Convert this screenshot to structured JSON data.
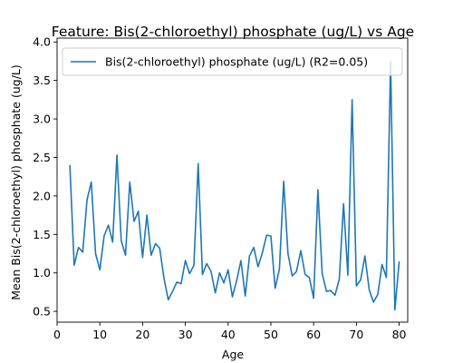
{
  "chart_data": {
    "type": "line",
    "title": "Feature: Bis(2-chloroethyl) phosphate (ug/L) vs Age",
    "xlabel": "Age",
    "ylabel": "Mean Bis(2-chloroethyl) phosphate (ug/L)",
    "xlim": [
      0,
      82
    ],
    "ylim": [
      0.36,
      4.05
    ],
    "xticks": [
      0,
      10,
      20,
      30,
      40,
      50,
      60,
      70,
      80
    ],
    "yticks": [
      0.5,
      1.0,
      1.5,
      2.0,
      2.5,
      3.0,
      3.5,
      4.0
    ],
    "ytick_labels": [
      "0.5",
      "1.0",
      "1.5",
      "2.0",
      "2.5",
      "3.0",
      "3.5",
      "4.0"
    ],
    "grid": false,
    "legend_position": "top-right",
    "series": [
      {
        "name": "Bis(2-chloroethyl) phosphate (ug/L) (R2=0.05)",
        "color": "#1f77b4",
        "x": [
          3,
          4,
          5,
          6,
          7,
          8,
          9,
          10,
          11,
          12,
          13,
          14,
          15,
          16,
          17,
          18,
          19,
          20,
          21,
          22,
          23,
          24,
          25,
          26,
          27,
          28,
          29,
          30,
          31,
          32,
          33,
          34,
          35,
          36,
          37,
          38,
          39,
          40,
          41,
          42,
          43,
          44,
          45,
          46,
          47,
          48,
          49,
          50,
          51,
          52,
          53,
          54,
          55,
          56,
          57,
          58,
          59,
          60,
          61,
          62,
          63,
          64,
          65,
          66,
          67,
          68,
          69,
          70,
          71,
          72,
          73,
          74,
          75,
          76,
          77,
          78,
          79,
          80
        ],
        "y": [
          2.39,
          1.1,
          1.33,
          1.27,
          1.95,
          2.18,
          1.25,
          1.04,
          1.48,
          1.62,
          1.4,
          2.53,
          1.42,
          1.23,
          2.18,
          1.67,
          1.8,
          1.2,
          1.75,
          1.23,
          1.38,
          1.32,
          0.93,
          0.65,
          0.76,
          0.88,
          0.86,
          1.16,
          0.99,
          1.1,
          2.42,
          0.98,
          1.12,
          1.02,
          0.74,
          1.0,
          0.87,
          1.04,
          0.69,
          0.9,
          1.16,
          0.7,
          1.22,
          1.33,
          1.08,
          1.26,
          1.49,
          1.48,
          0.8,
          1.05,
          2.19,
          1.25,
          0.96,
          1.02,
          1.29,
          0.98,
          0.94,
          0.67,
          2.08,
          0.99,
          0.76,
          0.77,
          0.71,
          0.92,
          1.9,
          0.97,
          3.25,
          0.83,
          0.91,
          1.22,
          0.78,
          0.62,
          0.72,
          1.11,
          0.94,
          3.75,
          0.52,
          1.14
        ]
      }
    ]
  }
}
